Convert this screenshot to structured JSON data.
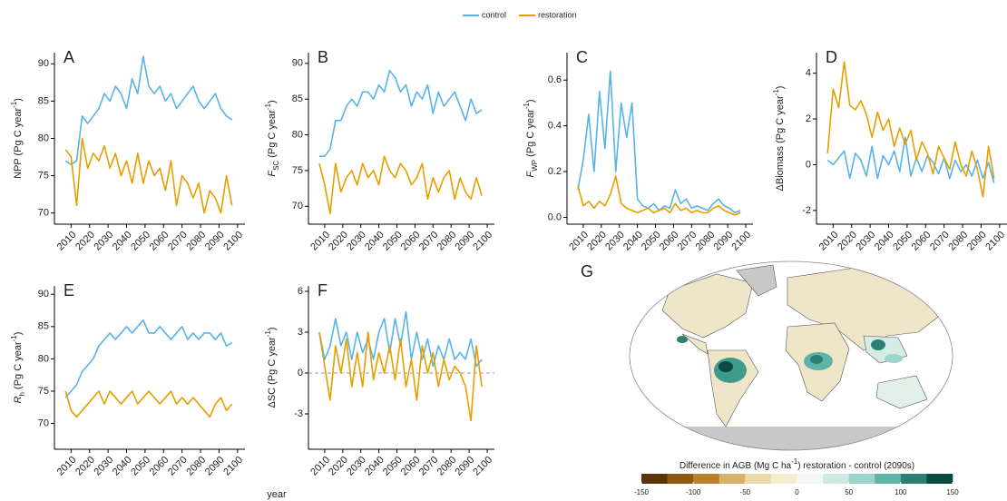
{
  "legend_position": "top",
  "xlabel": "year",
  "chart_data": [
    {
      "type": "line",
      "panel": "A",
      "ylabel": [
        {
          "text": "NPP (Pg C year"
        },
        {
          "text": "-1",
          "style": "sup"
        },
        {
          "text": ")"
        }
      ],
      "x": [
        2007,
        2010,
        2013,
        2016,
        2019,
        2022,
        2025,
        2028,
        2031,
        2034,
        2037,
        2040,
        2043,
        2046,
        2049,
        2052,
        2055,
        2058,
        2061,
        2064,
        2067,
        2070,
        2073,
        2076,
        2079,
        2082,
        2085,
        2088,
        2091,
        2094,
        2097
      ],
      "xlim": [
        2001,
        2104
      ],
      "xticks": [
        2010,
        2020,
        2030,
        2040,
        2050,
        2060,
        2070,
        2080,
        2090,
        2100
      ],
      "ylim": [
        68.5,
        91.5
      ],
      "yticks": [
        70,
        75,
        80,
        85,
        90
      ],
      "series": [
        {
          "name": "control",
          "color": "#56b4e9",
          "values": [
            77,
            76.5,
            77,
            83,
            82,
            83,
            84,
            86,
            85,
            87,
            86,
            84,
            88,
            86,
            91,
            87,
            86,
            87,
            85,
            86,
            84,
            85,
            86,
            87,
            85,
            84,
            85,
            86,
            84,
            83,
            82.5
          ]
        },
        {
          "name": "restoration",
          "color": "#e69f00",
          "values": [
            78.5,
            77.5,
            71,
            80,
            76,
            78,
            77,
            79,
            76,
            78,
            75,
            77,
            74,
            78,
            74,
            77,
            75,
            76,
            73,
            77,
            71,
            75,
            74,
            72,
            74,
            70,
            73,
            72,
            70,
            75,
            71
          ]
        }
      ]
    },
    {
      "type": "line",
      "panel": "B",
      "ylabel": [
        {
          "text": "F",
          "style": "italic"
        },
        {
          "text": "SC",
          "style": "sub"
        },
        {
          "text": " (Pg C year"
        },
        {
          "text": "-1",
          "style": "sup"
        },
        {
          "text": ")"
        }
      ],
      "x": [
        2007,
        2010,
        2013,
        2016,
        2019,
        2022,
        2025,
        2028,
        2031,
        2034,
        2037,
        2040,
        2043,
        2046,
        2049,
        2052,
        2055,
        2058,
        2061,
        2064,
        2067,
        2070,
        2073,
        2076,
        2079,
        2082,
        2085,
        2088,
        2091,
        2094,
        2097
      ],
      "xlim": [
        2001,
        2104
      ],
      "xticks": [
        2010,
        2020,
        2030,
        2040,
        2050,
        2060,
        2070,
        2080,
        2090,
        2100
      ],
      "ylim": [
        67.5,
        91.5
      ],
      "yticks": [
        70,
        75,
        80,
        85,
        90
      ],
      "series": [
        {
          "name": "control",
          "color": "#56b4e9",
          "values": [
            77,
            77,
            78,
            82,
            82,
            84,
            85,
            84,
            86,
            86,
            85,
            87,
            86,
            89,
            88,
            86,
            87,
            84,
            86,
            85,
            87,
            83,
            86,
            84,
            85,
            86,
            84,
            82,
            85,
            83,
            83.5
          ]
        },
        {
          "name": "restoration",
          "color": "#e69f00",
          "values": [
            76,
            73,
            69,
            76,
            72,
            74,
            75,
            73,
            76,
            74,
            75,
            73,
            77,
            75,
            74,
            76,
            75,
            73,
            74,
            76,
            71,
            74,
            72,
            74,
            75,
            71,
            74,
            72,
            71,
            74,
            71.5
          ]
        }
      ]
    },
    {
      "type": "line",
      "panel": "C",
      "ylabel": [
        {
          "text": "F",
          "style": "italic"
        },
        {
          "text": "WP",
          "style": "sub"
        },
        {
          "text": " (Pg C year"
        },
        {
          "text": "-1",
          "style": "sup"
        },
        {
          "text": ")"
        }
      ],
      "x": [
        2007,
        2010,
        2013,
        2016,
        2019,
        2022,
        2025,
        2028,
        2031,
        2034,
        2037,
        2040,
        2043,
        2046,
        2049,
        2052,
        2055,
        2058,
        2061,
        2064,
        2067,
        2070,
        2073,
        2076,
        2079,
        2082,
        2085,
        2088,
        2091,
        2094,
        2097
      ],
      "xlim": [
        2001,
        2104
      ],
      "xticks": [
        2010,
        2020,
        2030,
        2040,
        2050,
        2060,
        2070,
        2080,
        2090,
        2100
      ],
      "ylim": [
        -0.03,
        0.72
      ],
      "yticks": [
        {
          "value": 0,
          "label": "0.0"
        },
        0.2,
        0.4,
        0.6
      ],
      "series": [
        {
          "name": "control",
          "color": "#56b4e9",
          "values": [
            0.12,
            0.25,
            0.45,
            0.2,
            0.55,
            0.3,
            0.64,
            0.2,
            0.5,
            0.35,
            0.5,
            0.08,
            0.05,
            0.04,
            0.06,
            0.03,
            0.05,
            0.04,
            0.12,
            0.06,
            0.08,
            0.04,
            0.05,
            0.04,
            0.03,
            0.06,
            0.08,
            0.05,
            0.04,
            0.02,
            0.03
          ]
        },
        {
          "name": "restoration",
          "color": "#e69f00",
          "values": [
            0.14,
            0.05,
            0.07,
            0.04,
            0.07,
            0.05,
            0.1,
            0.18,
            0.06,
            0.04,
            0.03,
            0.02,
            0.03,
            0.04,
            0.02,
            0.03,
            0.04,
            0.02,
            0.06,
            0.03,
            0.04,
            0.02,
            0.03,
            0.02,
            0.02,
            0.04,
            0.05,
            0.03,
            0.02,
            0.01,
            0.02
          ]
        }
      ]
    },
    {
      "type": "line",
      "panel": "D",
      "ylabel": [
        {
          "text": "ΔBiomass (Pg C year"
        },
        {
          "text": "-1",
          "style": "sup"
        },
        {
          "text": ")"
        }
      ],
      "x": [
        2007,
        2010,
        2013,
        2016,
        2019,
        2022,
        2025,
        2028,
        2031,
        2034,
        2037,
        2040,
        2043,
        2046,
        2049,
        2052,
        2055,
        2058,
        2061,
        2064,
        2067,
        2070,
        2073,
        2076,
        2079,
        2082,
        2085,
        2088,
        2091,
        2094,
        2097
      ],
      "xlim": [
        2001,
        2104
      ],
      "xticks": [
        2010,
        2020,
        2030,
        2040,
        2050,
        2060,
        2070,
        2080,
        2090,
        2100
      ],
      "ylim": [
        -2.6,
        4.9
      ],
      "yticks": [
        -2,
        0,
        2,
        4
      ],
      "series": [
        {
          "name": "control",
          "color": "#56b4e9",
          "values": [
            0.2,
            0,
            0.3,
            0.6,
            -0.6,
            0.5,
            0.2,
            -0.5,
            0.8,
            -0.6,
            0.4,
            0,
            0.6,
            -0.3,
            1.2,
            -0.5,
            0.3,
            -0.3,
            0.4,
            0.1,
            -0.4,
            0.3,
            -0.6,
            0.2,
            -0.3,
            0,
            -0.5,
            0.2,
            -0.6,
            0.1,
            -0.8
          ]
        },
        {
          "name": "restoration",
          "color": "#e69f00",
          "values": [
            0.5,
            3.3,
            2.5,
            4.5,
            2.6,
            2.4,
            2.8,
            2.2,
            1.2,
            2.3,
            1.5,
            2,
            0.8,
            1.6,
            0.9,
            1.5,
            0.2,
            1,
            0.5,
            -0.4,
            0.8,
            0.3,
            -0.2,
            1,
            0,
            -0.5,
            0.6,
            -0.2,
            -1.4,
            0.8,
            -0.6
          ]
        }
      ]
    },
    {
      "type": "line",
      "panel": "E",
      "ylabel": [
        {
          "text": "R",
          "style": "italic"
        },
        {
          "text": "h",
          "style": "sub"
        },
        {
          "text": " (Pg C year"
        },
        {
          "text": "-1",
          "style": "sup"
        },
        {
          "text": ")"
        }
      ],
      "x": [
        2007,
        2010,
        2013,
        2016,
        2019,
        2022,
        2025,
        2028,
        2031,
        2034,
        2037,
        2040,
        2043,
        2046,
        2049,
        2052,
        2055,
        2058,
        2061,
        2064,
        2067,
        2070,
        2073,
        2076,
        2079,
        2082,
        2085,
        2088,
        2091,
        2094,
        2097
      ],
      "xlim": [
        2001,
        2104
      ],
      "xticks": [
        2010,
        2020,
        2030,
        2040,
        2050,
        2060,
        2070,
        2080,
        2090,
        2100
      ],
      "ylim": [
        66,
        91.3
      ],
      "yticks": [
        70,
        75,
        80,
        85,
        90
      ],
      "series": [
        {
          "name": "control",
          "color": "#56b4e9",
          "values": [
            74,
            75,
            76,
            78,
            79,
            80,
            82,
            83,
            84,
            83,
            84,
            85,
            84,
            85,
            86,
            84,
            84,
            85,
            84,
            83,
            84,
            85,
            83,
            84,
            83,
            84,
            84,
            83,
            84,
            82,
            82.5
          ]
        },
        {
          "name": "restoration",
          "color": "#e69f00",
          "values": [
            75,
            72,
            71,
            72,
            73,
            74,
            75,
            73,
            75,
            74,
            73,
            74,
            75,
            73,
            74,
            75,
            74,
            73,
            74,
            75,
            73,
            74,
            73,
            74,
            73,
            72,
            71,
            73,
            74,
            72,
            73
          ]
        }
      ]
    },
    {
      "type": "line",
      "panel": "F",
      "ylabel": [
        {
          "text": "ΔSC (Pg C year"
        },
        {
          "text": "-1",
          "style": "sup"
        },
        {
          "text": ")"
        }
      ],
      "x": [
        2007,
        2010,
        2013,
        2016,
        2019,
        2022,
        2025,
        2028,
        2031,
        2034,
        2037,
        2040,
        2043,
        2046,
        2049,
        2052,
        2055,
        2058,
        2061,
        2064,
        2067,
        2070,
        2073,
        2076,
        2079,
        2082,
        2085,
        2088,
        2091,
        2094,
        2097
      ],
      "xlim": [
        2001,
        2104
      ],
      "xticks": [
        2010,
        2020,
        2030,
        2040,
        2050,
        2060,
        2070,
        2080,
        2090,
        2100
      ],
      "ylim": [
        -5.6,
        6.4
      ],
      "yticks": [
        -3,
        0,
        3,
        6
      ],
      "hline": 0,
      "series": [
        {
          "name": "control",
          "color": "#56b4e9",
          "values": [
            3,
            1,
            2,
            4,
            2,
            3,
            1,
            3,
            1.5,
            2.5,
            1,
            3,
            4,
            1.5,
            4,
            2,
            4.5,
            1,
            3,
            1,
            2.5,
            0.5,
            2,
            1,
            2.5,
            1,
            1.5,
            1,
            2.5,
            0.5,
            1
          ]
        },
        {
          "name": "restoration",
          "color": "#e69f00",
          "values": [
            3,
            0.5,
            -2,
            2,
            0,
            2.5,
            -1,
            1.5,
            -1,
            3,
            -0.5,
            1.5,
            0,
            2,
            -0.5,
            2.5,
            -1,
            1,
            -2,
            2,
            0,
            1.5,
            -1,
            1,
            -0.5,
            0.5,
            0,
            -1,
            -3.5,
            2,
            -1
          ]
        }
      ]
    },
    {
      "type": "map",
      "panel": "G",
      "colorbar": {
        "title": [
          {
            "text": "Difference in AGB (Mg C ha"
          },
          {
            "text": "-1",
            "style": "sup"
          },
          {
            "text": ") restoration - control (2090s)"
          }
        ],
        "lim": [
          -150,
          150
        ],
        "ticks": [
          -150,
          -100,
          -50,
          0,
          50,
          100,
          150
        ],
        "colors": [
          "#5a3508",
          "#8c5a10",
          "#b9802d",
          "#d7b26b",
          "#ecd9a8",
          "#f6ecd2",
          "#f3f7f6",
          "#cde9e5",
          "#9bd5cc",
          "#5fb3a8",
          "#2b7f74",
          "#0a4a40"
        ]
      }
    }
  ]
}
